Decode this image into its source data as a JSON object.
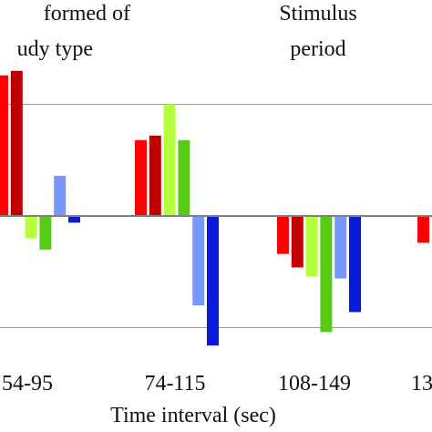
{
  "chart_data": {
    "type": "bar",
    "title": "",
    "xlabel": "Time interval (sec)",
    "ylabel": "",
    "annotations": [
      {
        "lines": [
          "formed of",
          "udy type"
        ]
      },
      {
        "lines": [
          "Stimulus",
          "period"
        ]
      }
    ],
    "categories": [
      "54-95",
      "74-115",
      "108-149",
      "13"
    ],
    "grid": true,
    "gridlines_y": [
      5,
      -5
    ],
    "ylim": [
      -7.5,
      9.0
    ],
    "series": [
      {
        "color": "#ff0000",
        "values": [
          6.3,
          3.4,
          -1.7,
          -1.2
        ]
      },
      {
        "color": "#c00000",
        "values": [
          6.5,
          3.6,
          -2.3,
          null
        ]
      },
      {
        "color": "#b5ff3c",
        "values": [
          -1.0,
          5.0,
          -2.7,
          null
        ]
      },
      {
        "color": "#55cc11",
        "values": [
          -1.5,
          3.4,
          -5.2,
          null
        ]
      },
      {
        "color": "#7799ff",
        "values": [
          1.8,
          -4.0,
          -2.8,
          null
        ]
      },
      {
        "color": "#0a1ad8",
        "values": [
          -0.3,
          -5.8,
          -4.3,
          null
        ]
      }
    ]
  }
}
